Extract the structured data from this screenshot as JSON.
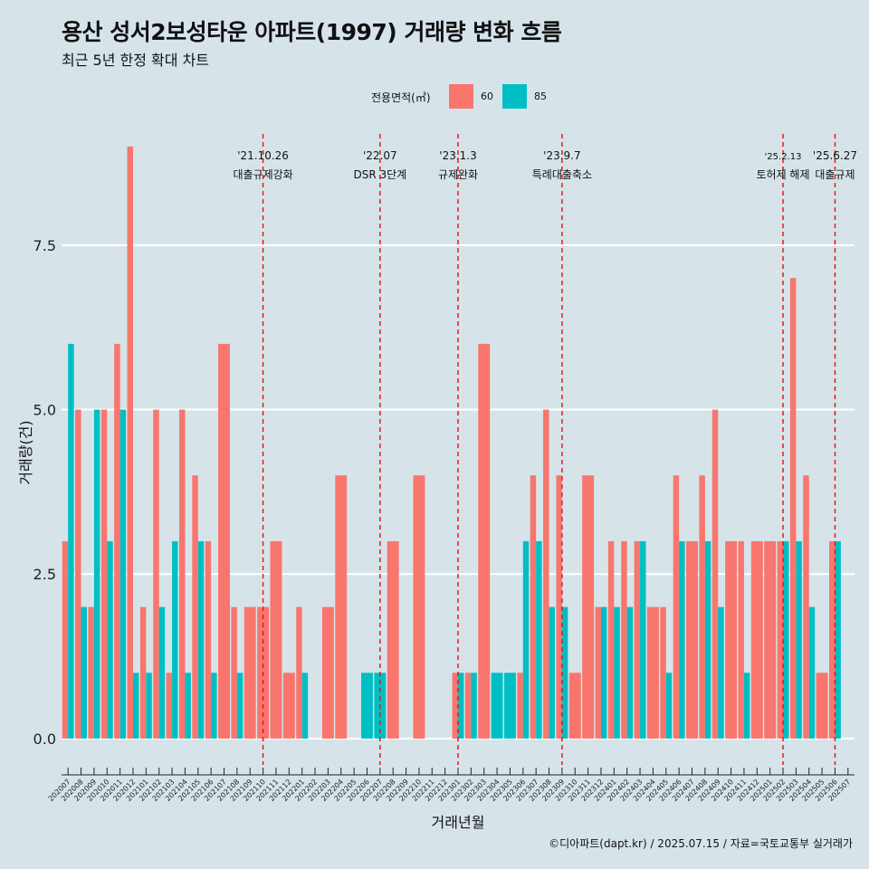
{
  "title": "용산 성서2보성타운 아파트(1997) 거래량 변화 흐름",
  "subtitle": "최근 5년 한정 확대 차트",
  "footer": "©디아파트(dapt.kr) / 2025.07.15 / 자료=국토교통부 실거래가",
  "colors": {
    "series60": "#f8766d",
    "series85": "#00bfc4",
    "background": "#d6e4ea",
    "grid": "#ffffff",
    "event_line": "#e41a1c"
  },
  "legend": {
    "title": "전용면적(㎡)",
    "items": [
      {
        "label": "60",
        "color": "#f8766d"
      },
      {
        "label": "85",
        "color": "#00bfc4"
      }
    ]
  },
  "chart_data": {
    "type": "bar",
    "title": "용산 성서2보성타운 아파트(1997) 거래량 변화 흐름",
    "xlabel": "거래년월",
    "ylabel": "거래량(건)",
    "ylim": [
      -0.4,
      9.3
    ],
    "yticks": [
      0.0,
      2.5,
      5.0,
      7.5
    ],
    "ytick_labels": [
      "0.0",
      "2.5",
      "5.0",
      "7.5"
    ],
    "categories": [
      "202007",
      "202008",
      "202009",
      "202010",
      "202011",
      "202012",
      "202101",
      "202102",
      "202103",
      "202104",
      "202105",
      "202106",
      "202107",
      "202108",
      "202109",
      "202110",
      "202111",
      "202112",
      "202201",
      "202202",
      "202203",
      "202204",
      "202205",
      "202206",
      "202207",
      "202208",
      "202209",
      "202210",
      "202211",
      "202212",
      "202301",
      "202302",
      "202303",
      "202304",
      "202305",
      "202306",
      "202307",
      "202308",
      "202309",
      "202310",
      "202311",
      "202312",
      "202401",
      "202402",
      "202403",
      "202404",
      "202405",
      "202406",
      "202407",
      "202408",
      "202409",
      "202410",
      "202411",
      "202412",
      "202501",
      "202502",
      "202503",
      "202504",
      "202505",
      "202506",
      "202507"
    ],
    "series": [
      {
        "name": "60",
        "values": [
          3,
          5,
          2,
          5,
          6,
          9,
          2,
          5,
          1,
          5,
          4,
          3,
          6,
          2,
          2,
          2,
          3,
          1,
          2,
          0,
          2,
          4,
          0,
          0,
          0,
          3,
          0,
          4,
          0,
          0,
          1,
          1,
          6,
          0,
          0,
          1,
          4,
          5,
          4,
          1,
          4,
          2,
          3,
          3,
          3,
          2,
          2,
          4,
          3,
          4,
          5,
          3,
          3,
          3,
          3,
          3,
          7,
          4,
          1,
          3,
          0
        ]
      },
      {
        "name": "85",
        "values": [
          6,
          2,
          5,
          3,
          5,
          1,
          1,
          2,
          3,
          1,
          3,
          1,
          0,
          1,
          0,
          0,
          0,
          0,
          1,
          0,
          0,
          0,
          0,
          1,
          1,
          0,
          0,
          0,
          0,
          0,
          1,
          1,
          0,
          1,
          1,
          3,
          3,
          2,
          2,
          0,
          0,
          2,
          2,
          2,
          3,
          0,
          1,
          3,
          0,
          3,
          2,
          0,
          1,
          0,
          0,
          3,
          3,
          2,
          0,
          3,
          0
        ]
      }
    ],
    "events": [
      {
        "label": "'21.10.26",
        "desc": "대출규제강화",
        "month": "202110"
      },
      {
        "label": "'22.07",
        "desc": "DSR 3단계",
        "month": "202207"
      },
      {
        "label": "'23.1.3",
        "desc": "규제완화",
        "month": "202301"
      },
      {
        "label": "'23.9.7",
        "desc": "특례대출축소",
        "month": "202309"
      },
      {
        "label": "'25.2.13",
        "desc": "토허제 해제",
        "month": "202502"
      },
      {
        "label": "'25.6.27",
        "desc": "대출규제",
        "month": "202506"
      }
    ]
  }
}
